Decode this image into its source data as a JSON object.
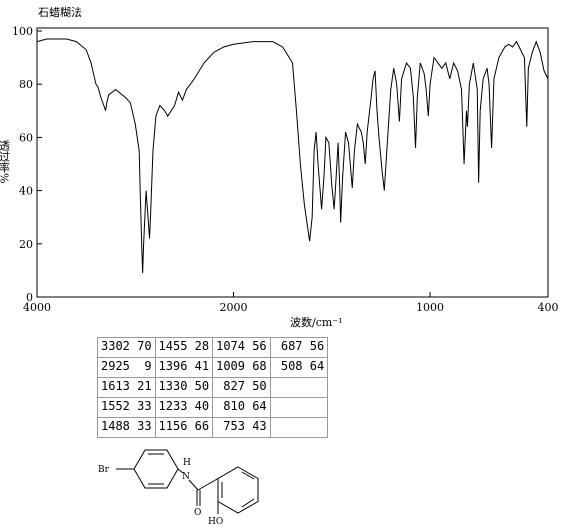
{
  "chart_data": {
    "type": "line",
    "title": "石蜡糊法",
    "xlabel": "波数/cm⁻¹",
    "ylabel": "透过率%",
    "xlim": [
      4000,
      400
    ],
    "x_scale_change_at": 2000,
    "x_scale_ratio": 2,
    "xticks": [
      4000,
      2000,
      1000,
      400
    ],
    "ylim": [
      0,
      100
    ],
    "yticks": [
      0,
      20,
      40,
      60,
      80,
      100
    ],
    "color": "#000000",
    "x": [
      4000,
      3900,
      3700,
      3600,
      3500,
      3450,
      3400,
      3380,
      3350,
      3320,
      3302,
      3290,
      3270,
      3200,
      3100,
      3050,
      3000,
      2960,
      2950,
      2935,
      2925,
      2915,
      2890,
      2870,
      2855,
      2845,
      2820,
      2790,
      2750,
      2700,
      2670,
      2600,
      2560,
      2520,
      2480,
      2400,
      2300,
      2200,
      2100,
      2000,
      1900,
      1800,
      1750,
      1700,
      1680,
      1660,
      1640,
      1613,
      1600,
      1590,
      1580,
      1570,
      1552,
      1540,
      1530,
      1515,
      1500,
      1488,
      1478,
      1468,
      1460,
      1455,
      1445,
      1430,
      1415,
      1396,
      1385,
      1370,
      1350,
      1340,
      1330,
      1320,
      1300,
      1290,
      1280,
      1270,
      1260,
      1245,
      1233,
      1220,
      1200,
      1185,
      1170,
      1156,
      1145,
      1120,
      1100,
      1085,
      1074,
      1065,
      1050,
      1030,
      1020,
      1009,
      1000,
      980,
      960,
      940,
      920,
      900,
      880,
      860,
      840,
      827,
      815,
      810,
      800,
      780,
      760,
      753,
      745,
      730,
      710,
      700,
      687,
      675,
      650,
      620,
      600,
      580,
      560,
      540,
      520,
      508,
      500,
      480,
      460,
      440,
      420,
      400
    ],
    "y": [
      96,
      97,
      97,
      96,
      93,
      88,
      80,
      79,
      75,
      72,
      70,
      73,
      76,
      78,
      75,
      73,
      65,
      55,
      40,
      20,
      9,
      20,
      40,
      30,
      22,
      30,
      55,
      68,
      72,
      70,
      68,
      72,
      77,
      74,
      78,
      82,
      88,
      92,
      94,
      95,
      96,
      96,
      94,
      88,
      70,
      50,
      35,
      21,
      30,
      55,
      62,
      50,
      33,
      45,
      60,
      58,
      42,
      33,
      45,
      58,
      42,
      28,
      45,
      62,
      58,
      41,
      55,
      65,
      62,
      58,
      50,
      62,
      75,
      82,
      85,
      70,
      60,
      48,
      40,
      55,
      78,
      86,
      80,
      66,
      82,
      88,
      86,
      75,
      56,
      75,
      88,
      84,
      78,
      68,
      80,
      90,
      88,
      86,
      88,
      82,
      88,
      85,
      78,
      50,
      70,
      64,
      80,
      88,
      78,
      43,
      70,
      82,
      86,
      80,
      56,
      82,
      90,
      94,
      95,
      94,
      96,
      93,
      90,
      64,
      86,
      92,
      96,
      92,
      85,
      82
    ]
  },
  "peak_table": {
    "columns": [
      [
        [
          3302,
          70
        ],
        [
          2925,
          9
        ],
        [
          1613,
          21
        ],
        [
          1552,
          33
        ],
        [
          1488,
          33
        ]
      ],
      [
        [
          1455,
          28
        ],
        [
          1396,
          41
        ],
        [
          1330,
          50
        ],
        [
          1233,
          40
        ],
        [
          1156,
          66
        ]
      ],
      [
        [
          1074,
          56
        ],
        [
          1009,
          68
        ],
        [
          827,
          50
        ],
        [
          810,
          64
        ],
        [
          753,
          43
        ]
      ],
      [
        [
          687,
          56
        ],
        [
          508,
          64
        ]
      ]
    ]
  },
  "structure": {
    "labels": [
      "Br",
      "H",
      "N",
      "O",
      "HO"
    ]
  }
}
